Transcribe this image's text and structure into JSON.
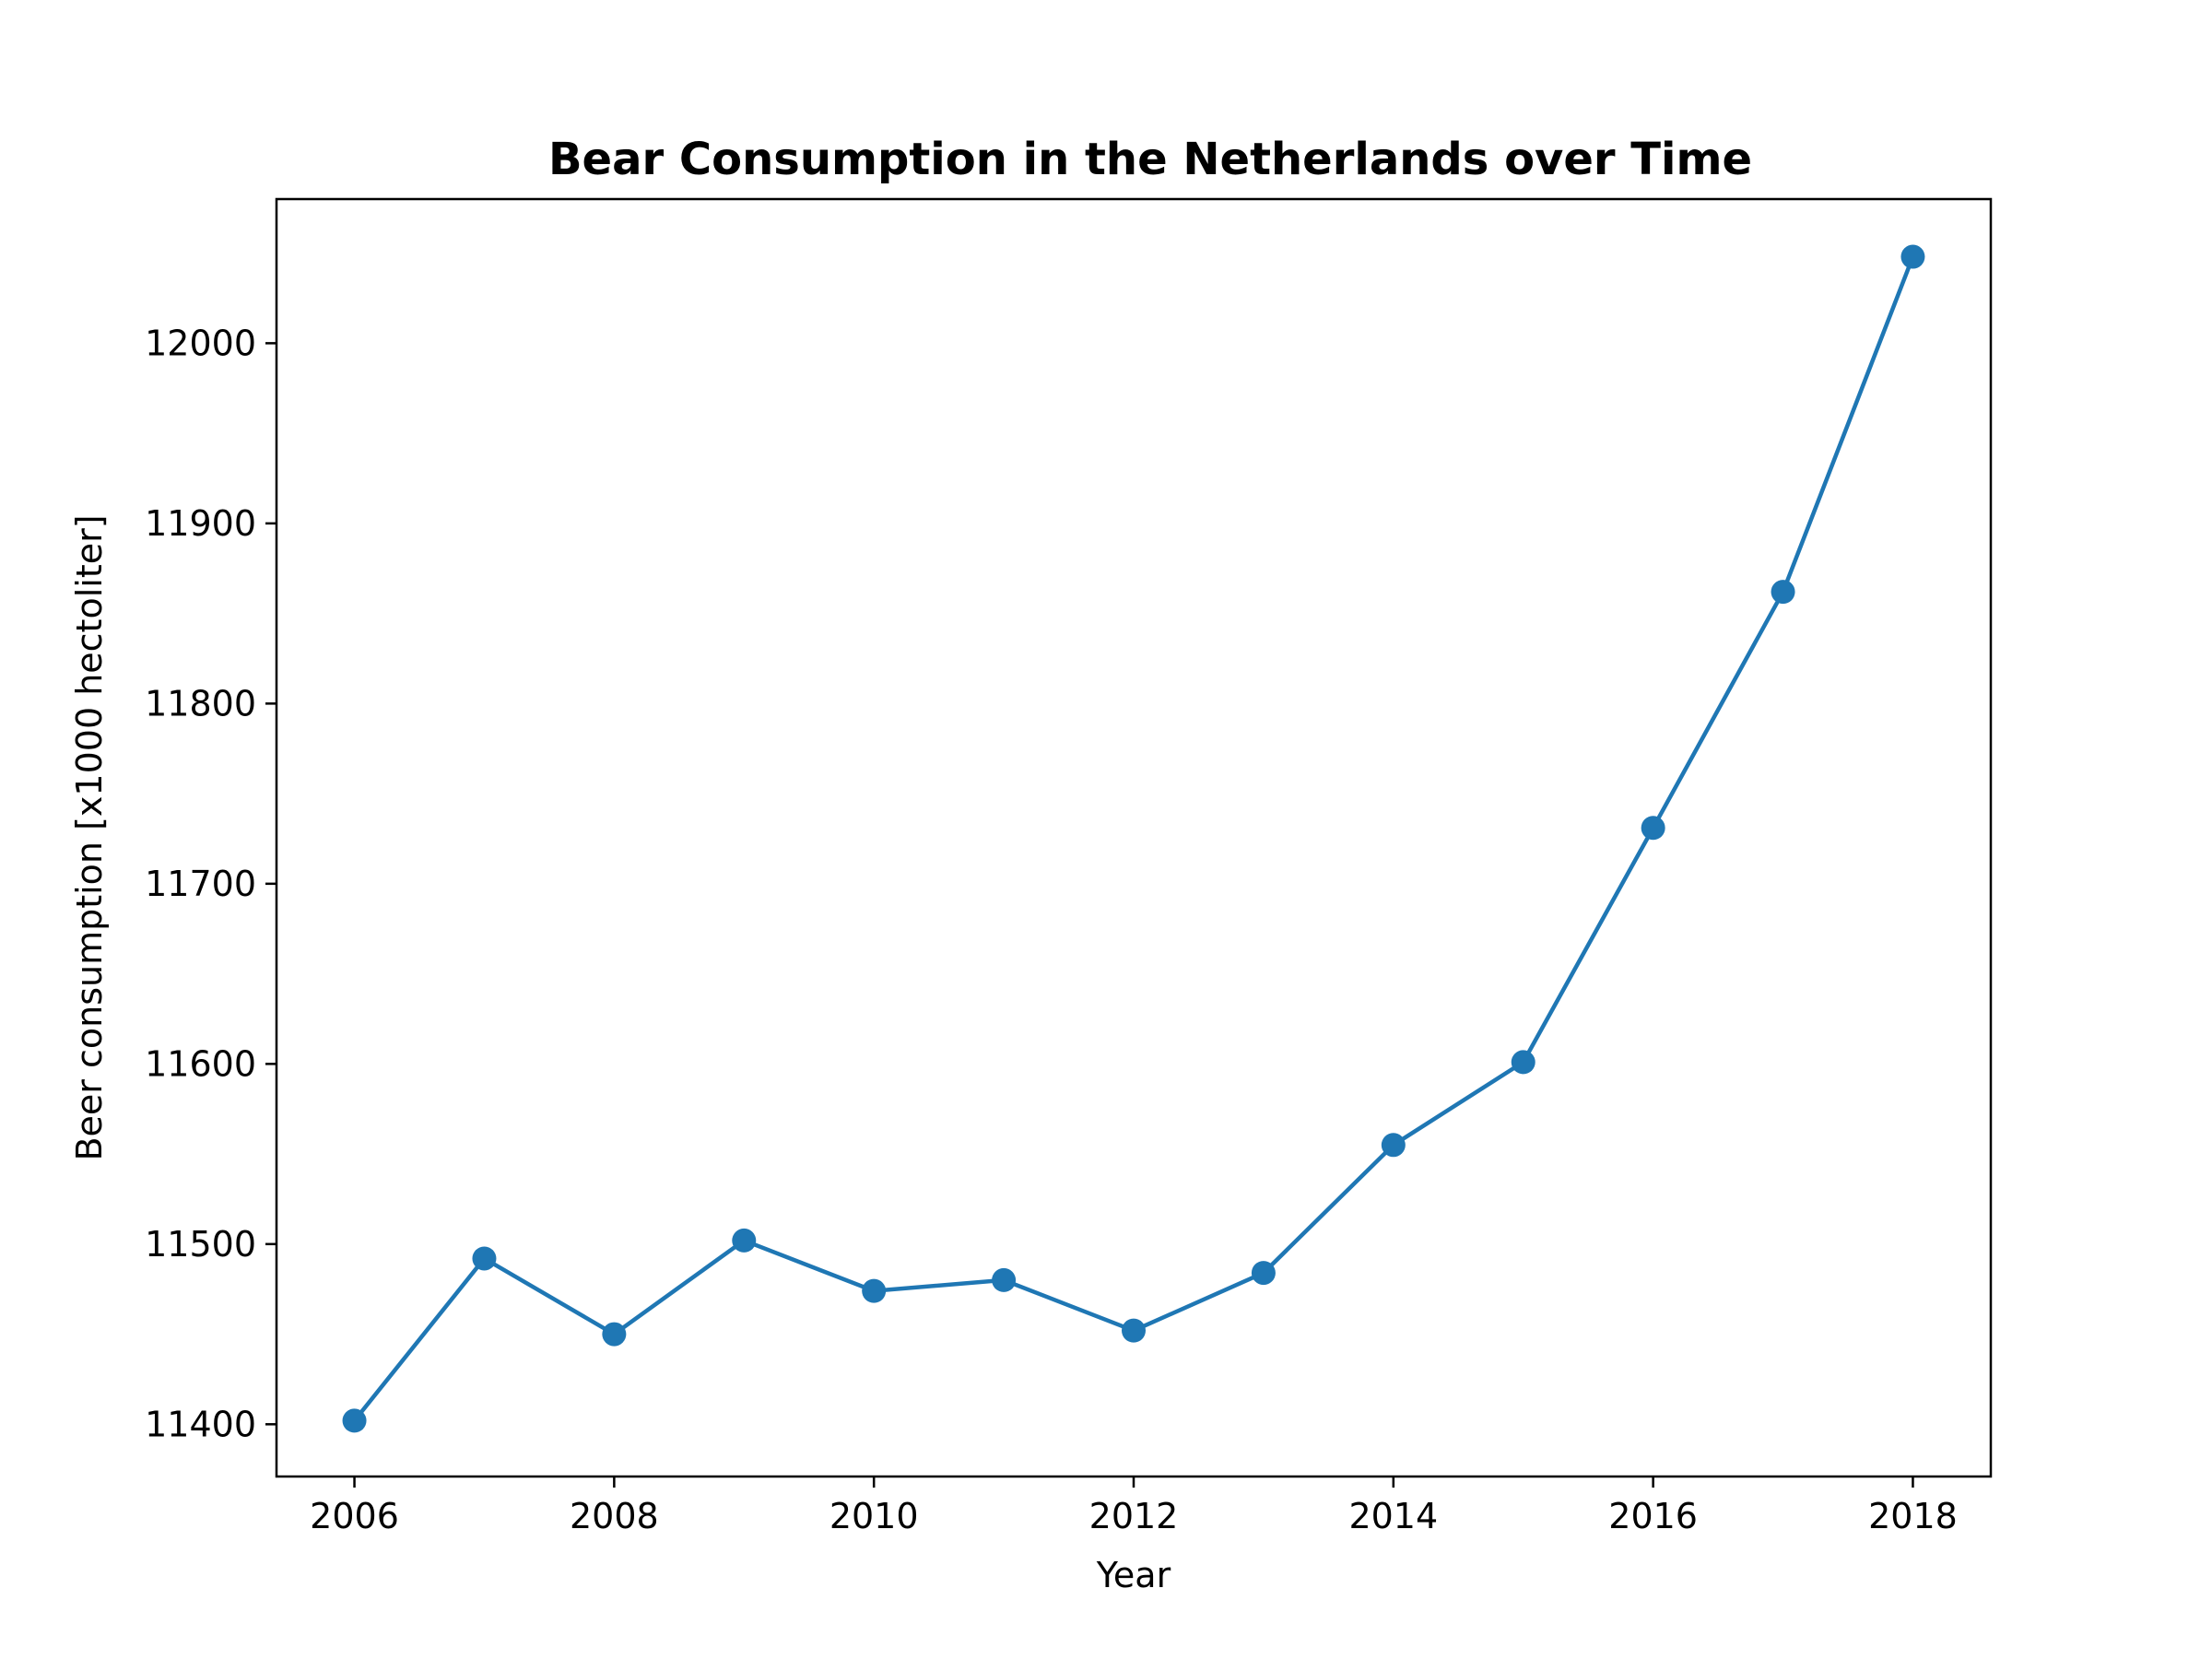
{
  "chart_data": {
    "type": "line",
    "title": "Bear Consumption in the Netherlands over Time",
    "xlabel": "Year",
    "ylabel": "Beer consumption [x1000 hectoliter]",
    "x": [
      2006,
      2007,
      2008,
      2009,
      2010,
      2011,
      2012,
      2013,
      2014,
      2015,
      2016,
      2017,
      2018
    ],
    "series": [
      {
        "values": [
          11402,
          11492,
          11450,
          11502,
          11474,
          11480,
          11452,
          11484,
          11555,
          11601,
          11731,
          11862,
          12048
        ],
        "color": "#1f77b4",
        "marker": "circle"
      }
    ],
    "xlim": [
      2005.4,
      2018.6
    ],
    "ylim": [
      11371,
      12080
    ],
    "xticks": [
      "2006",
      "2008",
      "2010",
      "2012",
      "2014",
      "2016",
      "2018"
    ],
    "yticks": [
      "11400",
      "11500",
      "11600",
      "11700",
      "11800",
      "11900",
      "12000"
    ],
    "grid": false,
    "legend": "none"
  }
}
